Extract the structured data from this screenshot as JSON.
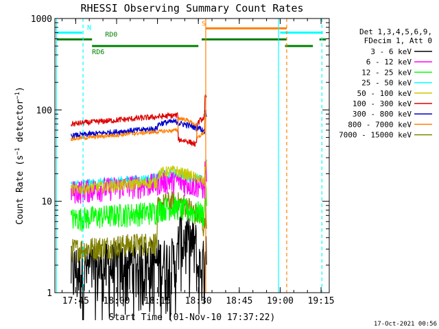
{
  "chart_data": {
    "type": "line",
    "title": "RHESSI Observing Summary Count Rates",
    "xlabel": "Start Time (01-Nov-10 17:37:22)",
    "ylabel": "Count Rate (s⁻¹ detector⁻¹)",
    "ylabel_parts": {
      "main": "Count Rate (s",
      "sup1": "−1",
      "mid": " detector",
      "sup2": "−1",
      "end": ")"
    },
    "x_range_min": [
      17.6228,
      19.3
    ],
    "y_scale": "log",
    "y_range": [
      1,
      1000
    ],
    "x_ticks": [
      {
        "label": "17:45",
        "value": 17.75
      },
      {
        "label": "18:00",
        "value": 18.0
      },
      {
        "label": "18:15",
        "value": 18.25
      },
      {
        "label": "18:30",
        "value": 18.5
      },
      {
        "label": "18:45",
        "value": 18.75
      },
      {
        "label": "19:00",
        "value": 19.0
      },
      {
        "label": "19:15",
        "value": 19.25
      }
    ],
    "y_ticks": [
      {
        "label": "1",
        "value": 1
      },
      {
        "label": "10",
        "value": 10
      },
      {
        "label": "100",
        "value": 100
      },
      {
        "label": "1000",
        "value": 1000
      }
    ],
    "legend_header": [
      "Det 1,3,4,5,6,9,",
      "FDecim 1, Att 0"
    ],
    "series": [
      {
        "name": "3 - 6 keV",
        "color": "#000000"
      },
      {
        "name": "6 - 12 keV",
        "color": "#ff00ff"
      },
      {
        "name": "12 - 25 keV",
        "color": "#00ff00"
      },
      {
        "name": "25 - 50 keV",
        "color": "#00ffff"
      },
      {
        "name": "50 - 100 keV",
        "color": "#c8c800"
      },
      {
        "name": "100 - 300 keV",
        "color": "#dd0000"
      },
      {
        "name": "300 - 800 keV",
        "color": "#0000cc"
      },
      {
        "name": "800 - 7000 keV",
        "color": "#ff8000"
      },
      {
        "name": "7000 - 15000 keV",
        "color": "#808000"
      }
    ],
    "state_bars": [
      {
        "label": "N",
        "color": "#00ffff",
        "level": 700,
        "segments": [
          [
            17.63,
            17.79
          ],
          [
            19.0,
            19.26
          ]
        ]
      },
      {
        "label": "S",
        "color": "#ff8000",
        "level": 780,
        "segments": [
          [
            18.545,
            19.04
          ]
        ]
      },
      {
        "label": "RD0",
        "color": "#008000",
        "level": 590,
        "segments": [
          [
            17.63,
            17.85
          ],
          [
            18.52,
            19.04
          ],
          [
            19.24,
            19.28
          ]
        ]
      },
      {
        "label": "RD6",
        "color": "#008000",
        "level": 500,
        "segments": [
          [
            17.85,
            18.5
          ],
          [
            19.03,
            19.2
          ]
        ]
      }
    ],
    "vlines": [
      {
        "x": 17.632,
        "color": "#00ffff",
        "style": "solid"
      },
      {
        "x": 17.795,
        "color": "#00ffff",
        "style": "dashed"
      },
      {
        "x": 18.545,
        "color": "#ff8000",
        "style": "solid"
      },
      {
        "x": 18.99,
        "color": "#00ffff",
        "style": "solid"
      },
      {
        "x": 19.04,
        "color": "#ff8000",
        "style": "dashed"
      },
      {
        "x": 19.255,
        "color": "#00ffff",
        "style": "dashed"
      }
    ],
    "data_window": {
      "start": 17.722,
      "end": 18.57,
      "gap_start": 18.375,
      "gap_end": 18.49,
      "spike_x": 18.55
    },
    "footer_timestamp": "17-Oct-2021 00:56"
  }
}
